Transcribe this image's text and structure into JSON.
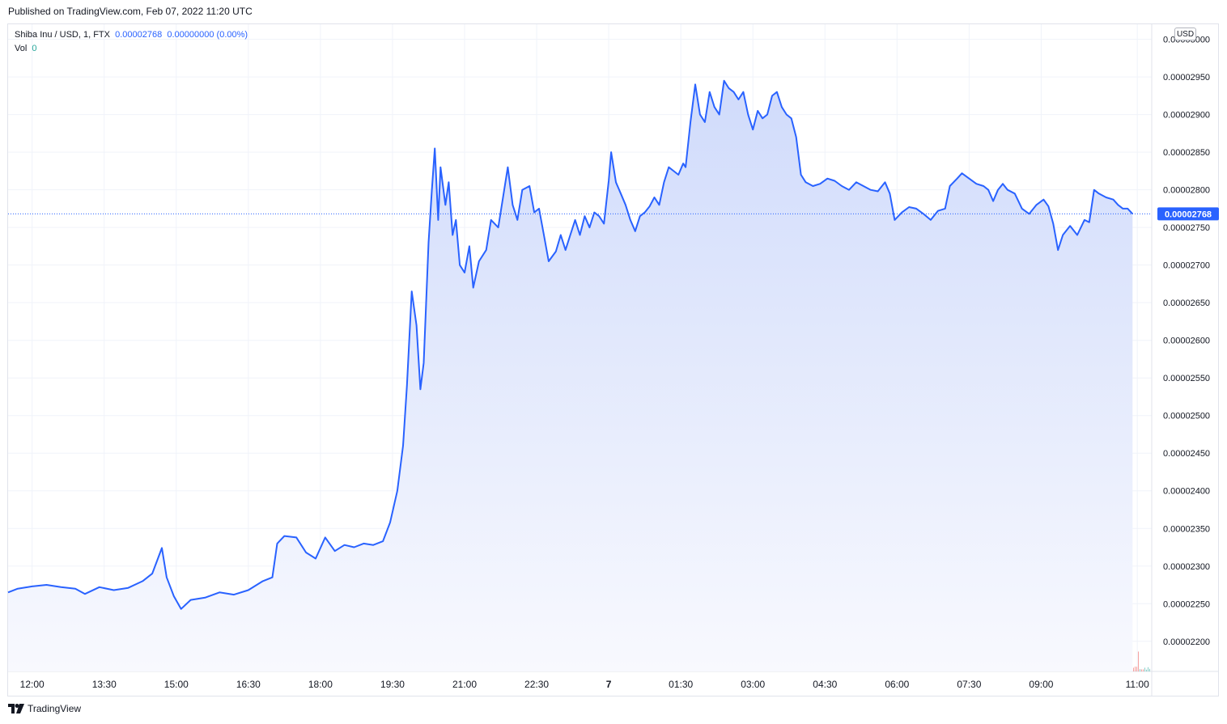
{
  "published": "Published on TradingView.com, Feb 07, 2022 11:20 UTC",
  "legend": {
    "symbol": "Shiba Inu / USD, 1, FTX",
    "price": "0.00002768",
    "change": "0.00000000 (0.00%)",
    "vol_label": "Vol",
    "vol_value": "0"
  },
  "currency": "USD",
  "footer": "TradingView",
  "colors": {
    "line": "#2962ff",
    "area_top": "#d0dbfb",
    "area_bottom": "#f8f9fe",
    "grid": "#f0f3fa",
    "vol_up": "#26a69a",
    "vol_down": "#ef5350"
  },
  "chart_data": {
    "type": "area",
    "symbol": "Shiba Inu / USD",
    "last_price_label": "0.00002768",
    "ylim": [
      2.16e-05,
      3.02e-05
    ],
    "y_ticks": [
      "0.00003000",
      "0.00002950",
      "0.00002900",
      "0.00002850",
      "0.00002800",
      "0.00002750",
      "0.00002700",
      "0.00002650",
      "0.00002600",
      "0.00002550",
      "0.00002500",
      "0.00002450",
      "0.00002400",
      "0.00002350",
      "0.00002300",
      "0.00002250",
      "0.00002200"
    ],
    "x_ticks": [
      "12:00",
      "13:30",
      "15:00",
      "16:30",
      "18:00",
      "19:30",
      "21:00",
      "22:30",
      "7",
      "01:30",
      "03:00",
      "04:30",
      "06:00",
      "07:30",
      "09:00",
      "11:00"
    ],
    "x_tick_hours": [
      0,
      1.5,
      3,
      4.5,
      6,
      7.5,
      9,
      10.5,
      12,
      13.5,
      15,
      16.5,
      18,
      19.5,
      21,
      23
    ],
    "x_range_hours": [
      -0.5,
      23.3
    ],
    "grid": true,
    "series": [
      {
        "values": [
          [
            -0.5,
            2.265e-05
          ],
          [
            -0.3,
            2.27e-05
          ],
          [
            0,
            2.273e-05
          ],
          [
            0.3,
            2.275e-05
          ],
          [
            0.6,
            2.272e-05
          ],
          [
            0.9,
            2.27e-05
          ],
          [
            1.1,
            2.263e-05
          ],
          [
            1.4,
            2.272e-05
          ],
          [
            1.7,
            2.268e-05
          ],
          [
            2.0,
            2.271e-05
          ],
          [
            2.3,
            2.28e-05
          ],
          [
            2.5,
            2.29e-05
          ],
          [
            2.7,
            2.324e-05
          ],
          [
            2.8,
            2.285e-05
          ],
          [
            2.95,
            2.26e-05
          ],
          [
            3.1,
            2.243e-05
          ],
          [
            3.3,
            2.255e-05
          ],
          [
            3.6,
            2.258e-05
          ],
          [
            3.9,
            2.265e-05
          ],
          [
            4.2,
            2.262e-05
          ],
          [
            4.5,
            2.268e-05
          ],
          [
            4.8,
            2.28e-05
          ],
          [
            5.0,
            2.285e-05
          ],
          [
            5.1,
            2.33e-05
          ],
          [
            5.25,
            2.34e-05
          ],
          [
            5.5,
            2.338e-05
          ],
          [
            5.7,
            2.318e-05
          ],
          [
            5.9,
            2.31e-05
          ],
          [
            6.1,
            2.338e-05
          ],
          [
            6.3,
            2.32e-05
          ],
          [
            6.5,
            2.328e-05
          ],
          [
            6.7,
            2.325e-05
          ],
          [
            6.9,
            2.33e-05
          ],
          [
            7.1,
            2.328e-05
          ],
          [
            7.3,
            2.333e-05
          ],
          [
            7.45,
            2.358e-05
          ],
          [
            7.6,
            2.4e-05
          ],
          [
            7.72,
            2.46e-05
          ],
          [
            7.8,
            2.54e-05
          ],
          [
            7.9,
            2.665e-05
          ],
          [
            8.0,
            2.62e-05
          ],
          [
            8.08,
            2.535e-05
          ],
          [
            8.15,
            2.57e-05
          ],
          [
            8.25,
            2.73e-05
          ],
          [
            8.32,
            2.8e-05
          ],
          [
            8.38,
            2.855e-05
          ],
          [
            8.45,
            2.76e-05
          ],
          [
            8.5,
            2.83e-05
          ],
          [
            8.6,
            2.78e-05
          ],
          [
            8.67,
            2.81e-05
          ],
          [
            8.75,
            2.74e-05
          ],
          [
            8.82,
            2.76e-05
          ],
          [
            8.9,
            2.7e-05
          ],
          [
            9.0,
            2.69e-05
          ],
          [
            9.1,
            2.725e-05
          ],
          [
            9.18,
            2.67e-05
          ],
          [
            9.3,
            2.705e-05
          ],
          [
            9.45,
            2.72e-05
          ],
          [
            9.55,
            2.76e-05
          ],
          [
            9.7,
            2.75e-05
          ],
          [
            9.8,
            2.79e-05
          ],
          [
            9.9,
            2.83e-05
          ],
          [
            10.0,
            2.78e-05
          ],
          [
            10.1,
            2.76e-05
          ],
          [
            10.2,
            2.8e-05
          ],
          [
            10.35,
            2.805e-05
          ],
          [
            10.45,
            2.77e-05
          ],
          [
            10.55,
            2.775e-05
          ],
          [
            10.65,
            2.74e-05
          ],
          [
            10.75,
            2.705e-05
          ],
          [
            10.9,
            2.718e-05
          ],
          [
            11.0,
            2.74e-05
          ],
          [
            11.1,
            2.72e-05
          ],
          [
            11.2,
            2.74e-05
          ],
          [
            11.3,
            2.76e-05
          ],
          [
            11.4,
            2.74e-05
          ],
          [
            11.5,
            2.765e-05
          ],
          [
            11.6,
            2.75e-05
          ],
          [
            11.7,
            2.77e-05
          ],
          [
            11.8,
            2.765e-05
          ],
          [
            11.9,
            2.755e-05
          ],
          [
            12.0,
            2.812e-05
          ],
          [
            12.05,
            2.85e-05
          ],
          [
            12.15,
            2.81e-05
          ],
          [
            12.25,
            2.795e-05
          ],
          [
            12.35,
            2.78e-05
          ],
          [
            12.45,
            2.76e-05
          ],
          [
            12.55,
            2.745e-05
          ],
          [
            12.65,
            2.765e-05
          ],
          [
            12.75,
            2.77e-05
          ],
          [
            12.85,
            2.778e-05
          ],
          [
            12.95,
            2.79e-05
          ],
          [
            13.05,
            2.78e-05
          ],
          [
            13.15,
            2.81e-05
          ],
          [
            13.25,
            2.83e-05
          ],
          [
            13.35,
            2.825e-05
          ],
          [
            13.45,
            2.82e-05
          ],
          [
            13.55,
            2.835e-05
          ],
          [
            13.6,
            2.83e-05
          ],
          [
            13.7,
            2.89e-05
          ],
          [
            13.8,
            2.94e-05
          ],
          [
            13.9,
            2.9e-05
          ],
          [
            14.0,
            2.89e-05
          ],
          [
            14.1,
            2.93e-05
          ],
          [
            14.2,
            2.91e-05
          ],
          [
            14.3,
            2.9e-05
          ],
          [
            14.4,
            2.945e-05
          ],
          [
            14.5,
            2.935e-05
          ],
          [
            14.6,
            2.93e-05
          ],
          [
            14.7,
            2.92e-05
          ],
          [
            14.8,
            2.93e-05
          ],
          [
            14.9,
            2.9e-05
          ],
          [
            15.0,
            2.88e-05
          ],
          [
            15.1,
            2.905e-05
          ],
          [
            15.2,
            2.895e-05
          ],
          [
            15.3,
            2.9e-05
          ],
          [
            15.4,
            2.925e-05
          ],
          [
            15.5,
            2.93e-05
          ],
          [
            15.6,
            2.91e-05
          ],
          [
            15.7,
            2.9e-05
          ],
          [
            15.8,
            2.895e-05
          ],
          [
            15.9,
            2.87e-05
          ],
          [
            16.0,
            2.82e-05
          ],
          [
            16.1,
            2.81e-05
          ],
          [
            16.25,
            2.805e-05
          ],
          [
            16.4,
            2.808e-05
          ],
          [
            16.55,
            2.815e-05
          ],
          [
            16.7,
            2.812e-05
          ],
          [
            16.85,
            2.805e-05
          ],
          [
            17.0,
            2.8e-05
          ],
          [
            17.15,
            2.81e-05
          ],
          [
            17.3,
            2.805e-05
          ],
          [
            17.45,
            2.8e-05
          ],
          [
            17.6,
            2.798e-05
          ],
          [
            17.75,
            2.81e-05
          ],
          [
            17.85,
            2.795e-05
          ],
          [
            17.95,
            2.76e-05
          ],
          [
            18.1,
            2.77e-05
          ],
          [
            18.25,
            2.777e-05
          ],
          [
            18.4,
            2.775e-05
          ],
          [
            18.55,
            2.768e-05
          ],
          [
            18.7,
            2.76e-05
          ],
          [
            18.85,
            2.772e-05
          ],
          [
            19.0,
            2.775e-05
          ],
          [
            19.1,
            2.805e-05
          ],
          [
            19.25,
            2.815e-05
          ],
          [
            19.35,
            2.822e-05
          ],
          [
            19.5,
            2.815e-05
          ],
          [
            19.65,
            2.808e-05
          ],
          [
            19.8,
            2.805e-05
          ],
          [
            19.9,
            2.8e-05
          ],
          [
            20.0,
            2.785e-05
          ],
          [
            20.1,
            2.8e-05
          ],
          [
            20.2,
            2.808e-05
          ],
          [
            20.3,
            2.8e-05
          ],
          [
            20.45,
            2.795e-05
          ],
          [
            20.6,
            2.775e-05
          ],
          [
            20.75,
            2.768e-05
          ],
          [
            20.9,
            2.78e-05
          ],
          [
            21.05,
            2.787e-05
          ],
          [
            21.15,
            2.778e-05
          ],
          [
            21.25,
            2.755e-05
          ],
          [
            21.35,
            2.72e-05
          ],
          [
            21.45,
            2.74e-05
          ],
          [
            21.6,
            2.752e-05
          ],
          [
            21.75,
            2.74e-05
          ],
          [
            21.9,
            2.76e-05
          ],
          [
            22.0,
            2.757e-05
          ],
          [
            22.1,
            2.8e-05
          ],
          [
            22.2,
            2.795e-05
          ],
          [
            22.35,
            2.79e-05
          ],
          [
            22.5,
            2.787e-05
          ],
          [
            22.6,
            2.78e-05
          ],
          [
            22.7,
            2.775e-05
          ],
          [
            22.8,
            2.775e-05
          ],
          [
            22.9,
            2.768e-05
          ]
        ]
      }
    ],
    "volume": {
      "spike_hour": 7.8,
      "max_height_frac": 0.95
    }
  }
}
